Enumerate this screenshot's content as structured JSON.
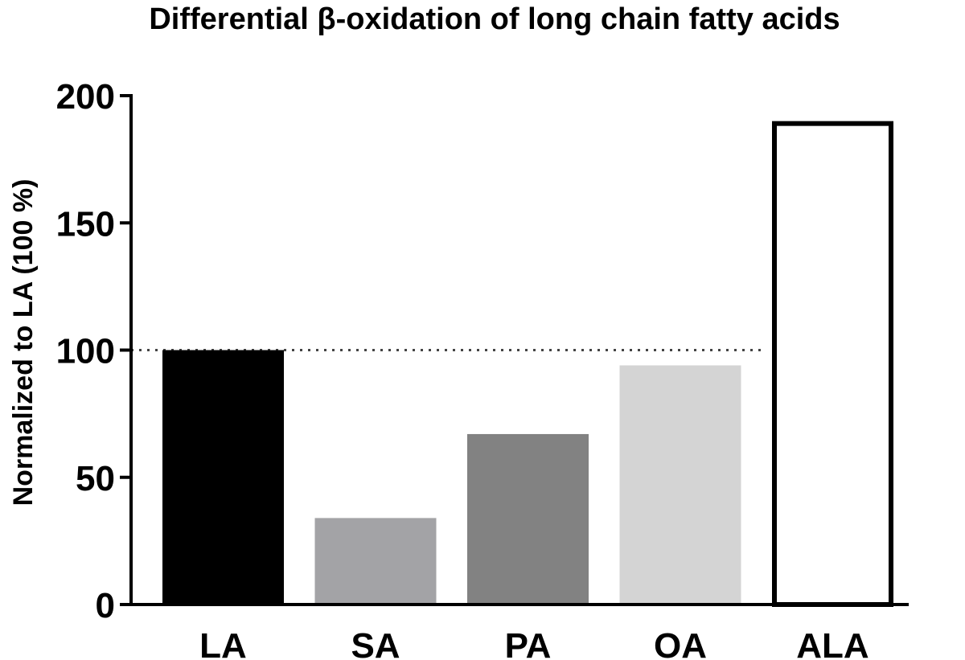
{
  "chart_data": {
    "type": "bar",
    "title": "Differential β-oxidation of long chain fatty acids",
    "xlabel": "",
    "ylabel": "Normalized to LA  (100 %)",
    "categories": [
      "LA",
      "SA",
      "PA",
      "OA",
      "ALA"
    ],
    "values": [
      100,
      34,
      67,
      94,
      190
    ],
    "bar_colors": [
      "#000000",
      "#a3a3a6",
      "#828282",
      "#d4d4d4",
      "#ffffff"
    ],
    "ylim": [
      0,
      200
    ],
    "yticks": [
      "0",
      "50",
      "100",
      "150",
      "200"
    ],
    "reference_line": {
      "value": 100,
      "style": "dotted"
    },
    "grid": false,
    "legend": "none"
  }
}
